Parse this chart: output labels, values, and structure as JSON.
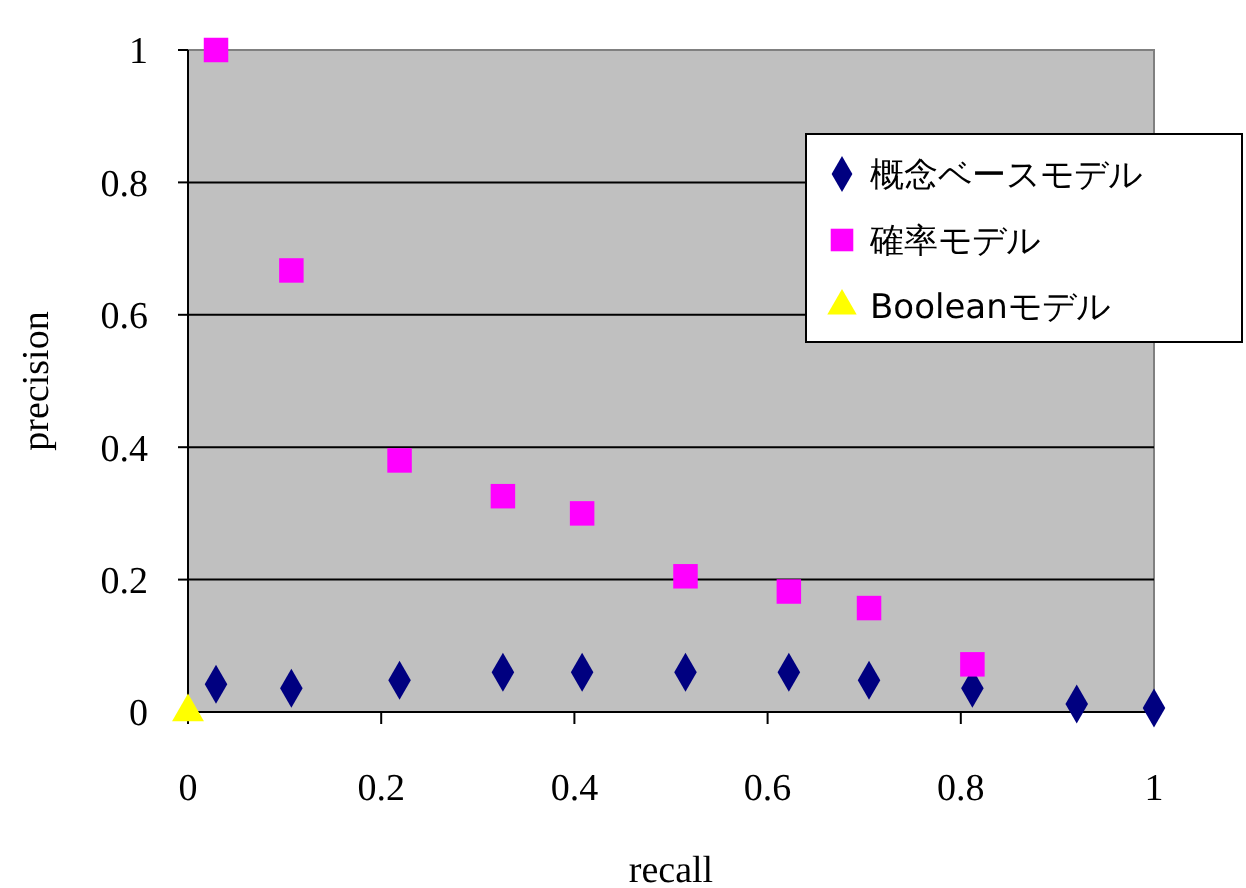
{
  "chart_data": {
    "type": "scatter",
    "xlabel": "recall",
    "ylabel": "precision",
    "xlim": [
      0,
      1
    ],
    "xticks": [
      0,
      0.2,
      0.4,
      0.6,
      0.8,
      1
    ],
    "ylim": [
      0,
      1
    ],
    "yticks": [
      0,
      0.2,
      0.4,
      0.6,
      0.8,
      1
    ],
    "grid": "y",
    "legend": "top right",
    "series": [
      {
        "name": "概念ベースモデル",
        "color": "#000080",
        "marker": "diamond",
        "x": [
          0.029,
          0.107,
          0.219,
          0.326,
          0.408,
          0.515,
          0.622,
          0.705,
          0.812,
          0.92,
          1.0
        ],
        "values": [
          0.042,
          0.036,
          0.048,
          0.06,
          0.06,
          0.06,
          0.06,
          0.048,
          0.036,
          0.012,
          0.006
        ]
      },
      {
        "name": "確率モデル",
        "color": "#ff00ff",
        "marker": "square",
        "x": [
          0.029,
          0.107,
          0.219,
          0.326,
          0.408,
          0.515,
          0.622,
          0.705,
          0.812
        ],
        "values": [
          1.0,
          0.667,
          0.38,
          0.326,
          0.3,
          0.205,
          0.182,
          0.157,
          0.072
        ]
      },
      {
        "name": "Booleanモデル",
        "color": "#ffff00",
        "marker": "triangle",
        "x": [
          0
        ],
        "values": [
          0
        ]
      }
    ]
  }
}
